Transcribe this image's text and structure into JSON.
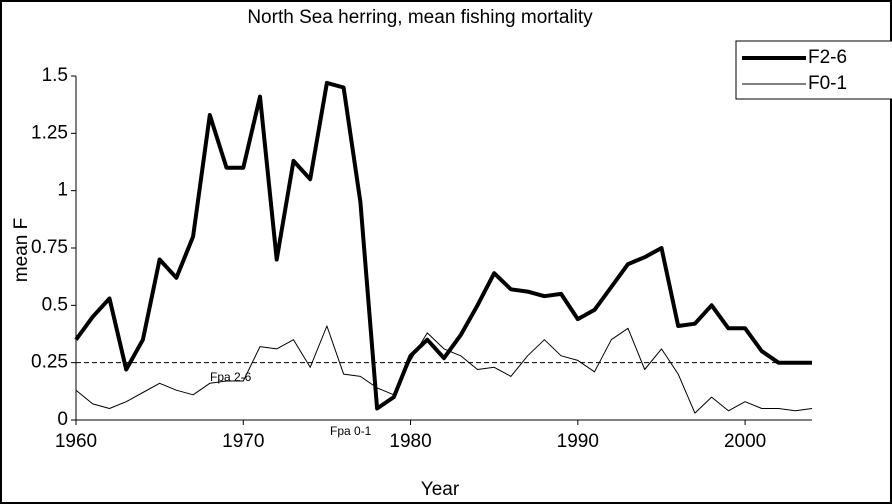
{
  "chart_data": {
    "type": "line",
    "title": "North Sea herring, mean fishing mortality",
    "xlabel": "Year",
    "ylabel": "mean F",
    "x": [
      1960,
      1961,
      1962,
      1963,
      1964,
      1965,
      1966,
      1967,
      1968,
      1969,
      1970,
      1971,
      1972,
      1973,
      1974,
      1975,
      1976,
      1977,
      1978,
      1979,
      1980,
      1981,
      1982,
      1983,
      1984,
      1985,
      1986,
      1987,
      1988,
      1989,
      1990,
      1991,
      1992,
      1993,
      1994,
      1995,
      1996,
      1997,
      1998,
      1999,
      2000,
      2001,
      2002,
      2003,
      2004
    ],
    "series": [
      {
        "name": "F2-6",
        "color": "#000000",
        "values": [
          0.35,
          0.45,
          0.53,
          0.22,
          0.35,
          0.7,
          0.62,
          0.8,
          1.33,
          1.1,
          1.1,
          1.41,
          0.7,
          1.13,
          1.05,
          1.47,
          1.45,
          0.95,
          0.05,
          0.1,
          0.28,
          0.35,
          0.27,
          0.37,
          0.5,
          0.64,
          0.57,
          0.56,
          0.54,
          0.55,
          0.44,
          0.48,
          0.58,
          0.68,
          0.71,
          0.75,
          0.41,
          0.42,
          0.5,
          0.4,
          0.4,
          0.3,
          0.25,
          0.25,
          0.25
        ]
      },
      {
        "name": "F0-1",
        "color": "#000000",
        "values": [
          0.13,
          0.07,
          0.05,
          0.08,
          0.12,
          0.16,
          0.13,
          0.11,
          0.16,
          0.17,
          0.17,
          0.32,
          0.31,
          0.35,
          0.23,
          0.41,
          0.2,
          0.19,
          0.14,
          0.11,
          0.26,
          0.38,
          0.31,
          0.28,
          0.22,
          0.23,
          0.19,
          0.28,
          0.35,
          0.28,
          0.26,
          0.21,
          0.35,
          0.4,
          0.22,
          0.31,
          0.2,
          0.03,
          0.1,
          0.04,
          0.08,
          0.05,
          0.05,
          0.04,
          0.05
        ]
      }
    ],
    "reference_line": 0.25,
    "annotations": [
      "Fpa 2-6",
      "Fpa 0-1"
    ],
    "xlim": [
      1960,
      2004
    ],
    "ylim": [
      0,
      1.5
    ],
    "xticks": [
      1960,
      1970,
      1980,
      1990,
      2000
    ],
    "yticks": [
      0,
      0.25,
      0.5,
      0.75,
      1,
      1.25,
      1.5
    ],
    "legend": "right"
  }
}
